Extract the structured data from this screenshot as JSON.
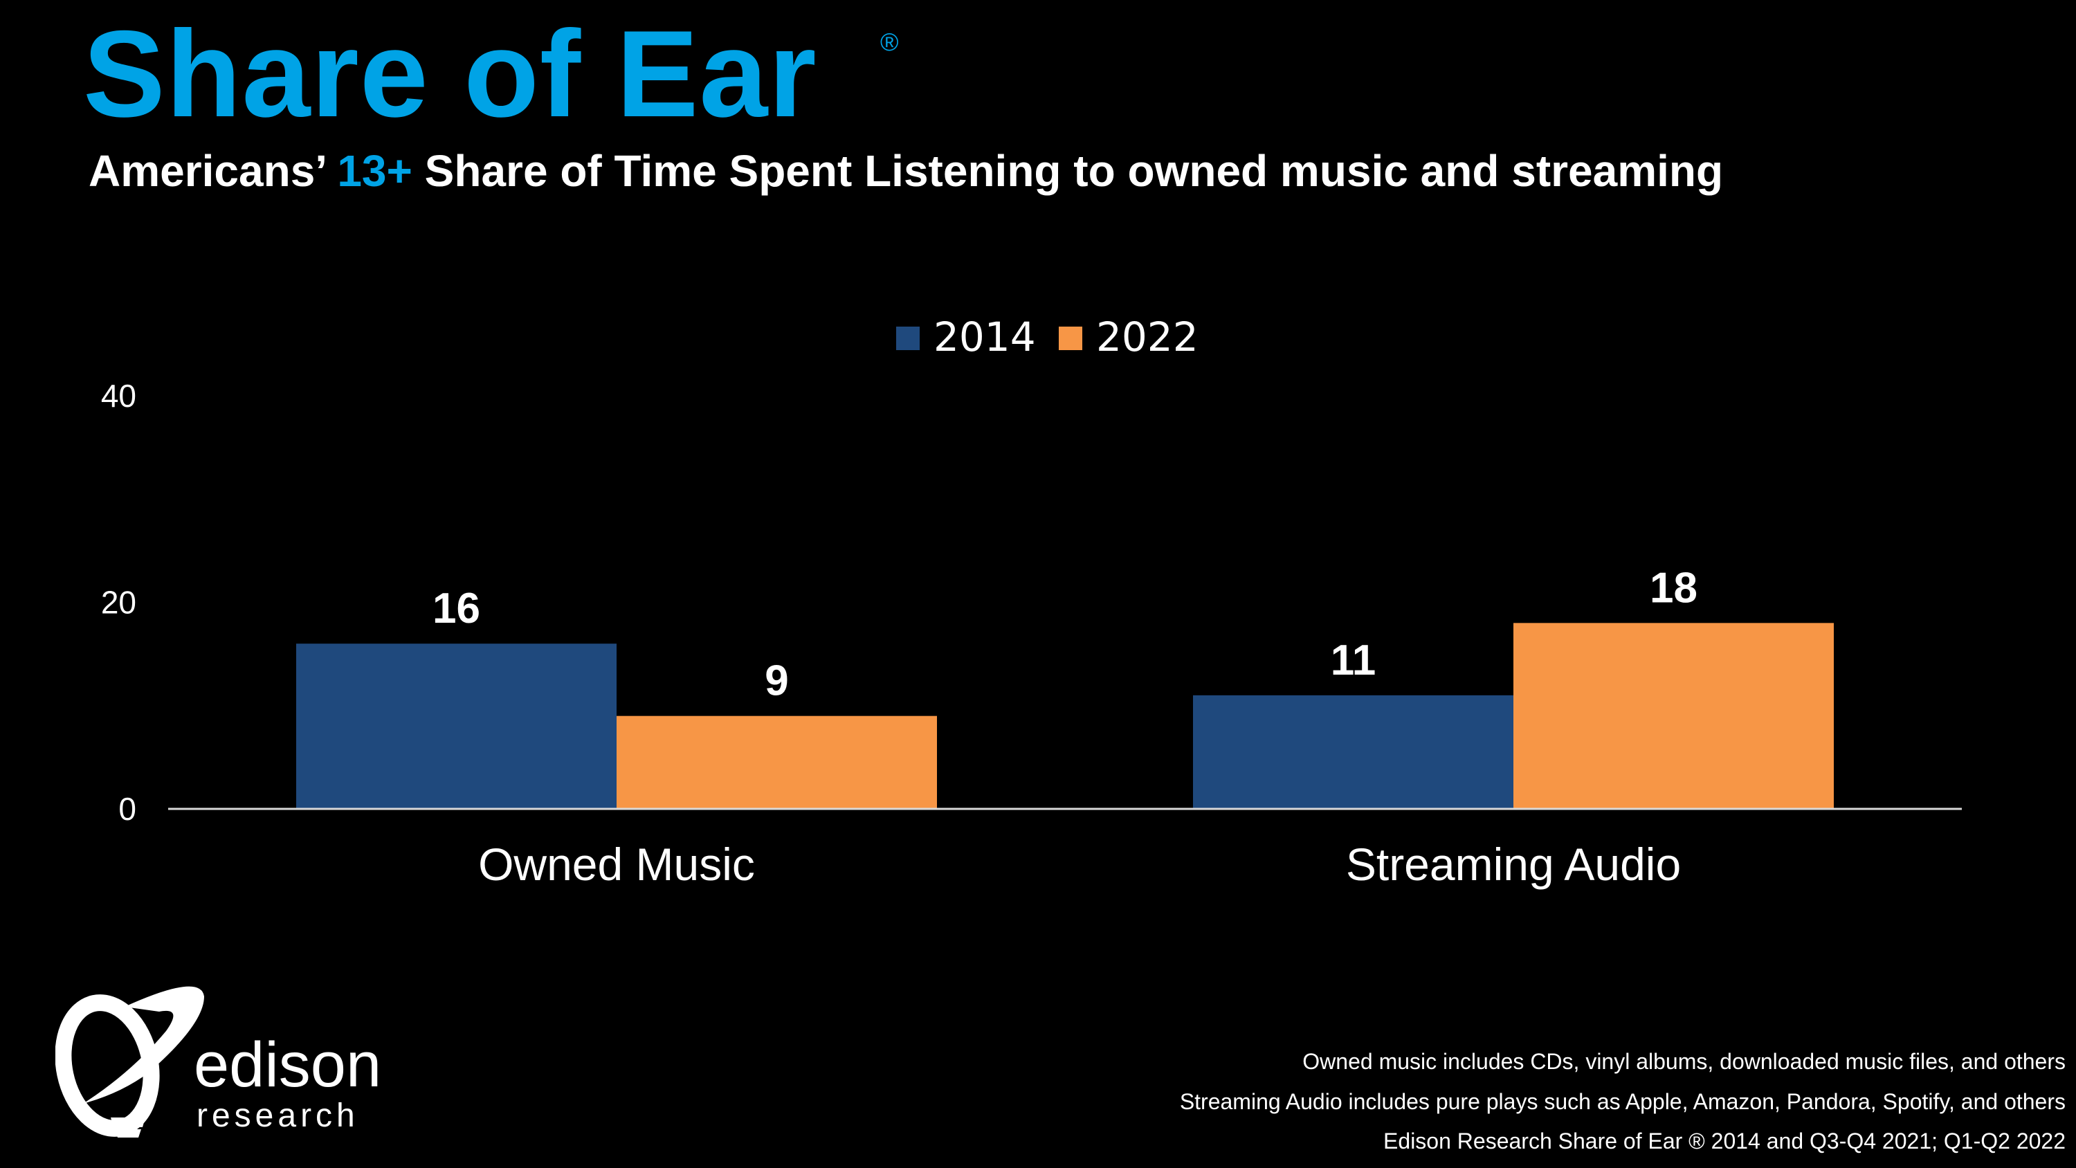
{
  "header": {
    "title": "Share of Ear",
    "registered_mark": "®",
    "subtitle_pre": "Americans’ ",
    "subtitle_highlight": "13+",
    "subtitle_post": " Share of Time Spent Listening to owned music and streaming"
  },
  "chart_data": {
    "type": "bar",
    "categories": [
      "Owned Music",
      "Streaming Audio"
    ],
    "series": [
      {
        "name": "2014",
        "values": [
          16,
          11
        ],
        "color": "#1F497D"
      },
      {
        "name": "2022",
        "values": [
          9,
          18
        ],
        "color": "#F79646"
      }
    ],
    "ylim": [
      0,
      40
    ],
    "yticks": [
      0,
      20,
      40
    ],
    "legend": "top-center",
    "grid": false
  },
  "footnotes": [
    "Owned music includes CDs, vinyl albums, downloaded music files, and others",
    "Streaming Audio includes pure plays such as Apple, Amazon, Pandora, Spotify, and others",
    "Edison Research Share of Ear ® 2014 and Q3-Q4 2021; Q1-Q2 2022"
  ],
  "logo": {
    "name": "edison",
    "tagline": "research"
  },
  "colors": {
    "accent": "#00A3E6",
    "bar_2014": "#1F497D",
    "bar_2022": "#F79646"
  }
}
